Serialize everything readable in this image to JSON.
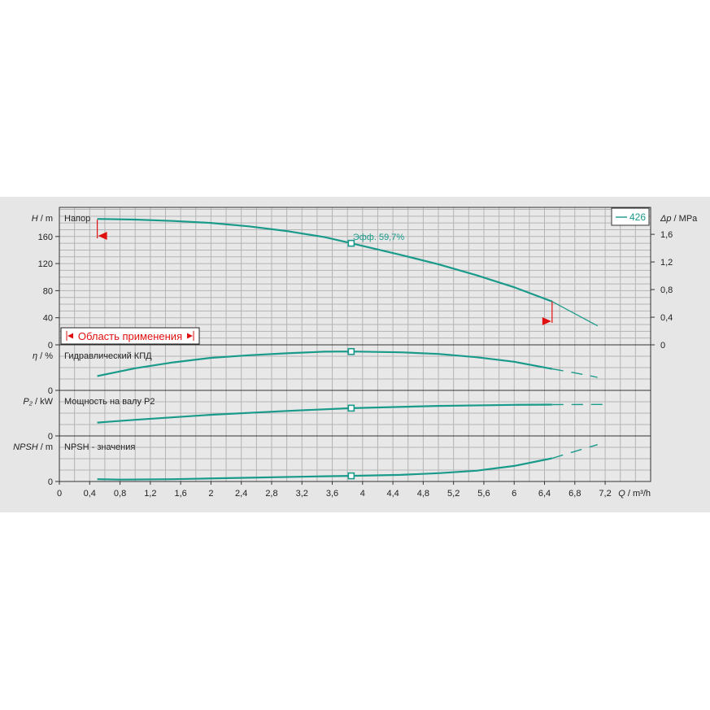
{
  "chart_data": {
    "type": "line",
    "legend": {
      "label": "426",
      "placement": "top-right",
      "color": "#1a9a8a"
    },
    "x_axis": {
      "label_symbol": "Q",
      "label_unit": "/ m³/h",
      "range": [
        0,
        7.8
      ],
      "ticks": [
        "0",
        "0,4",
        "0,8",
        "1,2",
        "1,6",
        "2",
        "2,4",
        "2,8",
        "3,2",
        "3,6",
        "4",
        "4,4",
        "4,8",
        "5,2",
        "5,6",
        "6",
        "6,4",
        "6,8",
        "7,2"
      ],
      "tick_values": [
        0,
        0.4,
        0.8,
        1.2,
        1.6,
        2,
        2.4,
        2.8,
        3.2,
        3.6,
        4,
        4.4,
        4.8,
        5.2,
        5.6,
        6,
        6.4,
        6.8,
        7.2
      ]
    },
    "duty_point_q": 3.85,
    "application_range": {
      "label": "Область применения",
      "q_min": 0.5,
      "q_max": 6.5,
      "color": "#e01010"
    },
    "panels": [
      {
        "id": "head",
        "title": "Напор",
        "y_symbol": "H",
        "y_unit": "/ m",
        "y_range": [
          0,
          203
        ],
        "y_ticks": [
          "0",
          "40",
          "80",
          "120",
          "160"
        ],
        "y_tick_values": [
          0,
          40,
          80,
          120,
          160
        ],
        "right_axis": {
          "symbol": "Δp",
          "unit": "/ MPa",
          "ticks": [
            "0",
            "0,4",
            "0,8",
            "1,2",
            "1,6"
          ],
          "tick_values": [
            0,
            0.4,
            0.8,
            1.2,
            1.6
          ],
          "range": [
            0,
            1.99
          ]
        },
        "annotation": "Эфф.  59,7%",
        "solid": {
          "x": [
            0.5,
            1,
            1.5,
            2,
            2.5,
            3,
            3.5,
            3.85,
            4.5,
            5,
            5.5,
            6,
            6.5
          ],
          "y": [
            186,
            185,
            183,
            180,
            175,
            168,
            159,
            150,
            133,
            119,
            103,
            85,
            64
          ]
        },
        "dashed": {
          "x": [
            6.5,
            6.8,
            7.1
          ],
          "y": [
            64,
            46,
            28
          ]
        }
      },
      {
        "id": "efficiency",
        "title": "Гидравлический КПД",
        "y_symbol": "η",
        "y_unit": "/ %",
        "y_range": [
          0,
          70
        ],
        "y_ticks": [
          "0"
        ],
        "y_tick_values": [
          0
        ],
        "solid": {
          "x": [
            0.5,
            1,
            1.5,
            2,
            2.5,
            3,
            3.5,
            3.85,
            4.5,
            5,
            5.5,
            6,
            6.5
          ],
          "y": [
            22,
            34,
            43,
            50,
            54,
            57,
            59.5,
            59.7,
            58.5,
            56,
            51,
            44,
            33
          ]
        },
        "dashed": {
          "x": [
            6.5,
            6.8,
            7.1
          ],
          "y": [
            33,
            27,
            20
          ]
        }
      },
      {
        "id": "power",
        "title": "Мощность на валу P2",
        "y_symbol": "P₂",
        "y_unit": "/ kW",
        "y_range": [
          0,
          4.1
        ],
        "y_ticks": [
          "0"
        ],
        "y_tick_values": [
          0
        ],
        "solid": {
          "x": [
            0.5,
            1,
            2,
            3,
            3.85,
            5,
            6,
            6.5
          ],
          "y": [
            1.2,
            1.45,
            1.9,
            2.25,
            2.5,
            2.7,
            2.8,
            2.82
          ]
        },
        "dashed": {
          "x": [
            6.5,
            7.2
          ],
          "y": [
            2.82,
            2.83
          ]
        }
      },
      {
        "id": "npsh",
        "title": "NPSH - значения",
        "y_symbol": "NPSH",
        "y_unit": "/ m",
        "y_range": [
          0,
          22
        ],
        "y_ticks": [
          "0"
        ],
        "y_tick_values": [
          0
        ],
        "solid": {
          "x": [
            0.5,
            0.8,
            1.5,
            2.5,
            3.5,
            3.85,
            4.5,
            5,
            5.5,
            6,
            6.5
          ],
          "y": [
            1.1,
            0.9,
            1.1,
            1.8,
            2.5,
            2.7,
            3.2,
            4,
            5.2,
            7.5,
            11.2
          ]
        },
        "dashed": {
          "x": [
            6.5,
            6.8,
            7.1
          ],
          "y": [
            11.2,
            14.5,
            17.8
          ]
        }
      }
    ]
  }
}
